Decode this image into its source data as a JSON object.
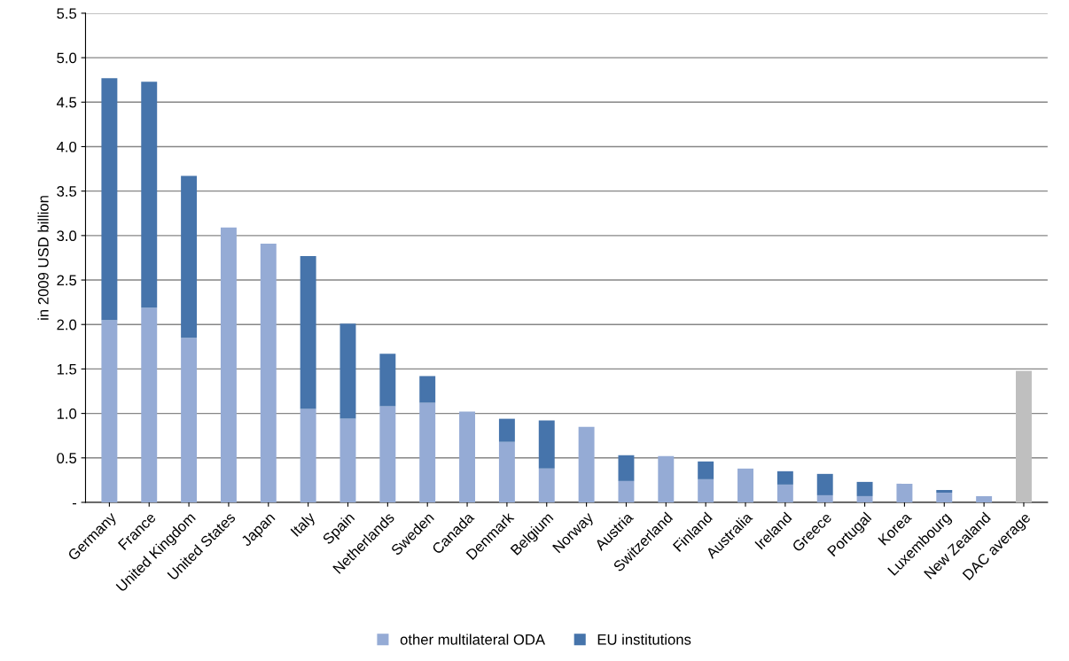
{
  "chart_data": {
    "type": "bar",
    "stacked": true,
    "ylabel": "in 2009 USD billion",
    "categories": [
      "Germany",
      "France",
      "United Kingdom",
      "United States",
      "Japan",
      "Italy",
      "Spain",
      "Netherlands",
      "Sweden",
      "Canada",
      "Denmark",
      "Belgium",
      "Norway",
      "Austria",
      "Switzerland",
      "Finland",
      "Australia",
      "Ireland",
      "Greece",
      "Portugal",
      "Korea",
      "Luxembourg",
      "New Zealand",
      "DAC average"
    ],
    "series": [
      {
        "name": "other multilateral ODA",
        "color": "#95abd5",
        "colors": [
          "#95abd5",
          "#95abd5",
          "#95abd5",
          "#95abd5",
          "#95abd5",
          "#95abd5",
          "#95abd5",
          "#95abd5",
          "#95abd5",
          "#95abd5",
          "#95abd5",
          "#95abd5",
          "#95abd5",
          "#95abd5",
          "#95abd5",
          "#95abd5",
          "#95abd5",
          "#95abd5",
          "#95abd5",
          "#95abd5",
          "#95abd5",
          "#95abd5",
          "#95abd5",
          "#bfbfbf"
        ],
        "values": [
          2.05,
          2.19,
          1.85,
          3.09,
          2.91,
          1.05,
          0.94,
          1.08,
          1.12,
          1.02,
          0.68,
          0.38,
          0.85,
          0.24,
          0.52,
          0.26,
          0.38,
          0.2,
          0.08,
          0.07,
          0.21,
          0.11,
          0.07,
          1.48
        ]
      },
      {
        "name": "EU institutions",
        "color": "#4674ab",
        "values": [
          2.72,
          2.54,
          1.82,
          null,
          null,
          1.72,
          1.07,
          0.59,
          0.3,
          null,
          0.26,
          0.54,
          null,
          0.29,
          null,
          0.2,
          null,
          0.15,
          0.24,
          0.16,
          null,
          0.03,
          null,
          null
        ]
      }
    ],
    "ylim": [
      0,
      5.5
    ],
    "yticks": [
      {
        "value": 0,
        "label": "-"
      },
      0.5,
      {
        "value": 1,
        "label": "1.0"
      },
      1.5,
      {
        "value": 2,
        "label": "2.0"
      },
      2.5,
      {
        "value": 3,
        "label": "3.0"
      },
      3.5,
      {
        "value": 4,
        "label": "4.0"
      },
      4.5,
      {
        "value": 5,
        "label": "5.0"
      },
      5.5
    ],
    "grid": "y",
    "legend": "bottom"
  }
}
